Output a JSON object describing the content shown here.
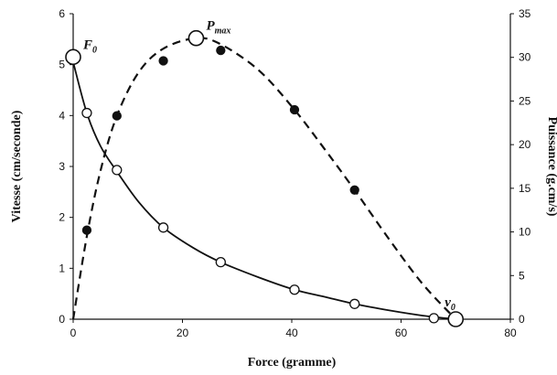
{
  "chart_data": {
    "type": "scatter",
    "title": "",
    "xlabel": "Force (gramme)",
    "ylabel_left": "Vitesse (cm/seconde)",
    "ylabel_right": "Puissance (g.cm/s)",
    "xlim": [
      0,
      80
    ],
    "ylim_left": [
      0,
      6
    ],
    "ylim_right": [
      0,
      35
    ],
    "x_ticks": [
      "0",
      "20",
      "40",
      "60",
      "80"
    ],
    "y_left_ticks": [
      "0",
      "1",
      "2",
      "3",
      "4",
      "5",
      "6"
    ],
    "y_right_ticks": [
      "0",
      "5",
      "10",
      "15",
      "20",
      "25",
      "30",
      "35"
    ],
    "grid": false,
    "series": [
      {
        "axis": "left",
        "marker": "open-circle",
        "line": "solid",
        "points": [
          {
            "x": 2.5,
            "y": 4.05
          },
          {
            "x": 8.0,
            "y": 2.93
          },
          {
            "x": 16.5,
            "y": 1.8
          },
          {
            "x": 27.0,
            "y": 1.12
          },
          {
            "x": 40.5,
            "y": 0.58
          },
          {
            "x": 51.5,
            "y": 0.3
          },
          {
            "x": 66.0,
            "y": 0.02
          }
        ],
        "curve": [
          {
            "x": 0,
            "y": 5.05
          },
          {
            "x": 2.5,
            "y": 4.05
          },
          {
            "x": 5,
            "y": 3.4
          },
          {
            "x": 8,
            "y": 2.9
          },
          {
            "x": 12,
            "y": 2.3
          },
          {
            "x": 16.5,
            "y": 1.8
          },
          {
            "x": 22,
            "y": 1.4
          },
          {
            "x": 27,
            "y": 1.12
          },
          {
            "x": 34,
            "y": 0.82
          },
          {
            "x": 40.5,
            "y": 0.58
          },
          {
            "x": 46,
            "y": 0.44
          },
          {
            "x": 51.5,
            "y": 0.3
          },
          {
            "x": 58,
            "y": 0.17
          },
          {
            "x": 64,
            "y": 0.07
          },
          {
            "x": 70,
            "y": 0.0
          }
        ]
      },
      {
        "axis": "right",
        "marker": "filled-circle",
        "line": "dashed",
        "points": [
          {
            "x": 2.5,
            "y": 10.2
          },
          {
            "x": 8.0,
            "y": 23.3
          },
          {
            "x": 16.5,
            "y": 29.6
          },
          {
            "x": 27.0,
            "y": 30.8
          },
          {
            "x": 40.5,
            "y": 24.0
          },
          {
            "x": 51.5,
            "y": 14.8
          }
        ],
        "curve": [
          {
            "x": 0,
            "y": 0
          },
          {
            "x": 2.5,
            "y": 9.5
          },
          {
            "x": 5,
            "y": 17.0
          },
          {
            "x": 8,
            "y": 23.3
          },
          {
            "x": 12,
            "y": 28.3
          },
          {
            "x": 16.5,
            "y": 31.0
          },
          {
            "x": 22.5,
            "y": 32.2
          },
          {
            "x": 27,
            "y": 31.5
          },
          {
            "x": 34,
            "y": 28.5
          },
          {
            "x": 40.5,
            "y": 24.0
          },
          {
            "x": 46,
            "y": 19.5
          },
          {
            "x": 51.5,
            "y": 14.8
          },
          {
            "x": 58,
            "y": 9.0
          },
          {
            "x": 64,
            "y": 4.0
          },
          {
            "x": 70,
            "y": 0.0
          }
        ]
      }
    ],
    "annotations": [
      {
        "text": "F",
        "sub": "0",
        "x": 0,
        "y": 5.15,
        "axis": "left",
        "label_side": "right-above"
      },
      {
        "text": "P",
        "sub": "max",
        "x": 22.5,
        "y": 32.2,
        "axis": "right",
        "label_side": "right-above"
      },
      {
        "text": "v",
        "sub": "0",
        "x": 70,
        "y": 0.0,
        "axis": "left",
        "label_side": "above"
      }
    ]
  }
}
